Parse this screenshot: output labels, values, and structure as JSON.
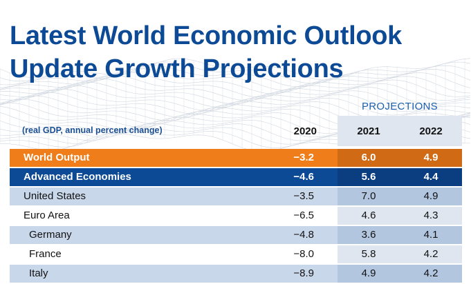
{
  "title_line1": "Latest World Economic Outlook",
  "title_line2": "Update Growth Projections",
  "projections_label": "PROJECTIONS",
  "note": "(real GDP, annual percent change)",
  "years": [
    "2020",
    "2021",
    "2022"
  ],
  "colors": {
    "title": "#0d4a96",
    "world_row": "#ee7d1a",
    "advanced_row": "#0d4a96",
    "light_row": "#c9d7ea"
  },
  "chart_data": {
    "type": "table",
    "columns": [
      "2020",
      "2021",
      "2022"
    ],
    "rows": [
      {
        "name": "World Output",
        "values": [
          "−3.2",
          "6.0",
          "4.9"
        ],
        "style": "orange"
      },
      {
        "name": "Advanced Economies",
        "values": [
          "−4.6",
          "5.6",
          "4.4"
        ],
        "style": "blue"
      },
      {
        "name": "United States",
        "values": [
          "−3.5",
          "7.0",
          "4.9"
        ],
        "style": "light"
      },
      {
        "name": "Euro Area",
        "values": [
          "−6.5",
          "4.6",
          "4.3"
        ],
        "style": "white"
      },
      {
        "name": "Germany",
        "values": [
          "−4.8",
          "3.6",
          "4.1"
        ],
        "style": "light",
        "indent": true
      },
      {
        "name": "France",
        "values": [
          "−8.0",
          "5.8",
          "4.2"
        ],
        "style": "white",
        "indent": true
      },
      {
        "name": "Italy",
        "values": [
          "−8.9",
          "4.9",
          "4.2"
        ],
        "style": "light",
        "indent": true
      }
    ]
  }
}
